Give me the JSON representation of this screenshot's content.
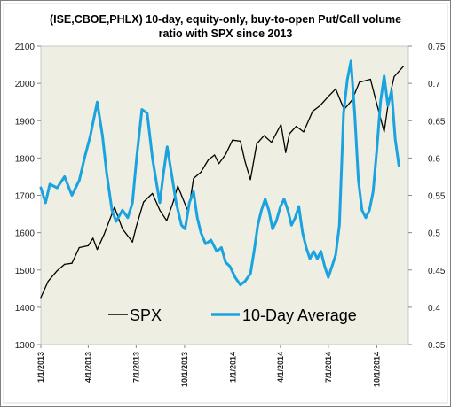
{
  "chart_data": {
    "type": "line",
    "title_lines": [
      "(ISE,CBOE,PHLX) 10-day, equity-only, buy-to-open Put/Call volume",
      "ratio with SPX since 2013"
    ],
    "x_tick_labels": [
      "1/1/2013",
      "4/1/2013",
      "7/1/2013",
      "10/1/2013",
      "1/1/2014",
      "4/1/2014",
      "7/1/2014",
      "10/1/2014"
    ],
    "x_range": [
      "2013-01-01",
      "2014-11-30"
    ],
    "y_left": {
      "ticks": [
        1300,
        1400,
        1500,
        1600,
        1700,
        1800,
        1900,
        2000,
        2100
      ],
      "range": [
        1300,
        2100
      ]
    },
    "y_right": {
      "ticks": [
        "0.35",
        "0.4",
        "0.45",
        "0.5",
        "0.55",
        "0.6",
        "0.65",
        "0.7",
        "0.75"
      ],
      "range": [
        0.35,
        0.75
      ]
    },
    "legend": {
      "placement": "bottom-left",
      "entries": [
        "SPX",
        "10-Day Average"
      ]
    },
    "grid": false,
    "series": [
      {
        "name": "SPX",
        "axis": "left",
        "color": "#000000",
        "points": [
          [
            "2013-01-01",
            1426
          ],
          [
            "2013-01-15",
            1470
          ],
          [
            "2013-02-01",
            1498
          ],
          [
            "2013-02-15",
            1515
          ],
          [
            "2013-03-01",
            1518
          ],
          [
            "2013-03-15",
            1560
          ],
          [
            "2013-04-01",
            1565
          ],
          [
            "2013-04-10",
            1585
          ],
          [
            "2013-04-18",
            1555
          ],
          [
            "2013-05-01",
            1595
          ],
          [
            "2013-05-21",
            1668
          ],
          [
            "2013-06-05",
            1610
          ],
          [
            "2013-06-24",
            1575
          ],
          [
            "2013-07-01",
            1615
          ],
          [
            "2013-07-15",
            1682
          ],
          [
            "2013-08-01",
            1705
          ],
          [
            "2013-08-15",
            1660
          ],
          [
            "2013-08-28",
            1632
          ],
          [
            "2013-09-10",
            1685
          ],
          [
            "2013-09-18",
            1725
          ],
          [
            "2013-10-08",
            1655
          ],
          [
            "2013-10-18",
            1745
          ],
          [
            "2013-11-01",
            1762
          ],
          [
            "2013-11-15",
            1795
          ],
          [
            "2013-11-27",
            1808
          ],
          [
            "2013-12-05",
            1785
          ],
          [
            "2013-12-18",
            1810
          ],
          [
            "2013-12-31",
            1848
          ],
          [
            "2014-01-15",
            1845
          ],
          [
            "2014-01-24",
            1790
          ],
          [
            "2014-02-03",
            1742
          ],
          [
            "2014-02-15",
            1838
          ],
          [
            "2014-03-01",
            1860
          ],
          [
            "2014-03-15",
            1842
          ],
          [
            "2014-04-02",
            1890
          ],
          [
            "2014-04-11",
            1815
          ],
          [
            "2014-04-18",
            1865
          ],
          [
            "2014-05-01",
            1885
          ],
          [
            "2014-05-15",
            1870
          ],
          [
            "2014-06-01",
            1925
          ],
          [
            "2014-06-15",
            1940
          ],
          [
            "2014-07-01",
            1965
          ],
          [
            "2014-07-15",
            1985
          ],
          [
            "2014-07-31",
            1930
          ],
          [
            "2014-08-15",
            1955
          ],
          [
            "2014-08-29",
            2003
          ],
          [
            "2014-09-19",
            2011
          ],
          [
            "2014-10-01",
            1945
          ],
          [
            "2014-10-15",
            1870
          ],
          [
            "2014-10-23",
            1950
          ],
          [
            "2014-11-03",
            2018
          ],
          [
            "2014-11-20",
            2045
          ]
        ]
      },
      {
        "name": "10-Day Average",
        "axis": "right",
        "color": "#1ba3e0",
        "points": [
          [
            "2013-01-01",
            0.56
          ],
          [
            "2013-01-10",
            0.54
          ],
          [
            "2013-01-18",
            0.565
          ],
          [
            "2013-02-01",
            0.56
          ],
          [
            "2013-02-15",
            0.575
          ],
          [
            "2013-03-01",
            0.55
          ],
          [
            "2013-03-15",
            0.57
          ],
          [
            "2013-03-25",
            0.6
          ],
          [
            "2013-04-05",
            0.63
          ],
          [
            "2013-04-18",
            0.675
          ],
          [
            "2013-04-28",
            0.63
          ],
          [
            "2013-05-06",
            0.58
          ],
          [
            "2013-05-16",
            0.53
          ],
          [
            "2013-05-24",
            0.515
          ],
          [
            "2013-06-05",
            0.53
          ],
          [
            "2013-06-15",
            0.52
          ],
          [
            "2013-06-24",
            0.54
          ],
          [
            "2013-07-02",
            0.6
          ],
          [
            "2013-07-12",
            0.665
          ],
          [
            "2013-07-22",
            0.66
          ],
          [
            "2013-08-01",
            0.6
          ],
          [
            "2013-08-09",
            0.565
          ],
          [
            "2013-08-15",
            0.54
          ],
          [
            "2013-08-22",
            0.58
          ],
          [
            "2013-08-29",
            0.615
          ],
          [
            "2013-09-06",
            0.58
          ],
          [
            "2013-09-15",
            0.54
          ],
          [
            "2013-09-25",
            0.51
          ],
          [
            "2013-10-02",
            0.505
          ],
          [
            "2013-10-10",
            0.54
          ],
          [
            "2013-10-18",
            0.555
          ],
          [
            "2013-10-25",
            0.52
          ],
          [
            "2013-11-01",
            0.5
          ],
          [
            "2013-11-10",
            0.485
          ],
          [
            "2013-11-20",
            0.49
          ],
          [
            "2013-12-01",
            0.475
          ],
          [
            "2013-12-10",
            0.48
          ],
          [
            "2013-12-18",
            0.46
          ],
          [
            "2013-12-26",
            0.455
          ],
          [
            "2014-01-05",
            0.44
          ],
          [
            "2014-01-15",
            0.43
          ],
          [
            "2014-01-24",
            0.435
          ],
          [
            "2014-02-03",
            0.445
          ],
          [
            "2014-02-10",
            0.475
          ],
          [
            "2014-02-17",
            0.51
          ],
          [
            "2014-02-24",
            0.53
          ],
          [
            "2014-03-03",
            0.545
          ],
          [
            "2014-03-10",
            0.53
          ],
          [
            "2014-03-17",
            0.505
          ],
          [
            "2014-03-24",
            0.515
          ],
          [
            "2014-04-01",
            0.535
          ],
          [
            "2014-04-08",
            0.545
          ],
          [
            "2014-04-15",
            0.53
          ],
          [
            "2014-04-22",
            0.51
          ],
          [
            "2014-04-29",
            0.52
          ],
          [
            "2014-05-06",
            0.535
          ],
          [
            "2014-05-13",
            0.5
          ],
          [
            "2014-05-20",
            0.48
          ],
          [
            "2014-05-27",
            0.465
          ],
          [
            "2014-06-03",
            0.475
          ],
          [
            "2014-06-10",
            0.465
          ],
          [
            "2014-06-17",
            0.475
          ],
          [
            "2014-06-24",
            0.455
          ],
          [
            "2014-07-01",
            0.44
          ],
          [
            "2014-07-08",
            0.455
          ],
          [
            "2014-07-15",
            0.47
          ],
          [
            "2014-07-22",
            0.51
          ],
          [
            "2014-07-30",
            0.66
          ],
          [
            "2014-08-06",
            0.705
          ],
          [
            "2014-08-13",
            0.73
          ],
          [
            "2014-08-20",
            0.66
          ],
          [
            "2014-08-27",
            0.57
          ],
          [
            "2014-09-03",
            0.53
          ],
          [
            "2014-09-10",
            0.52
          ],
          [
            "2014-09-17",
            0.53
          ],
          [
            "2014-09-24",
            0.555
          ],
          [
            "2014-10-01",
            0.61
          ],
          [
            "2014-10-08",
            0.675
          ],
          [
            "2014-10-15",
            0.71
          ],
          [
            "2014-10-22",
            0.67
          ],
          [
            "2014-10-29",
            0.69
          ],
          [
            "2014-11-05",
            0.625
          ],
          [
            "2014-11-12",
            0.59
          ]
        ]
      }
    ]
  }
}
